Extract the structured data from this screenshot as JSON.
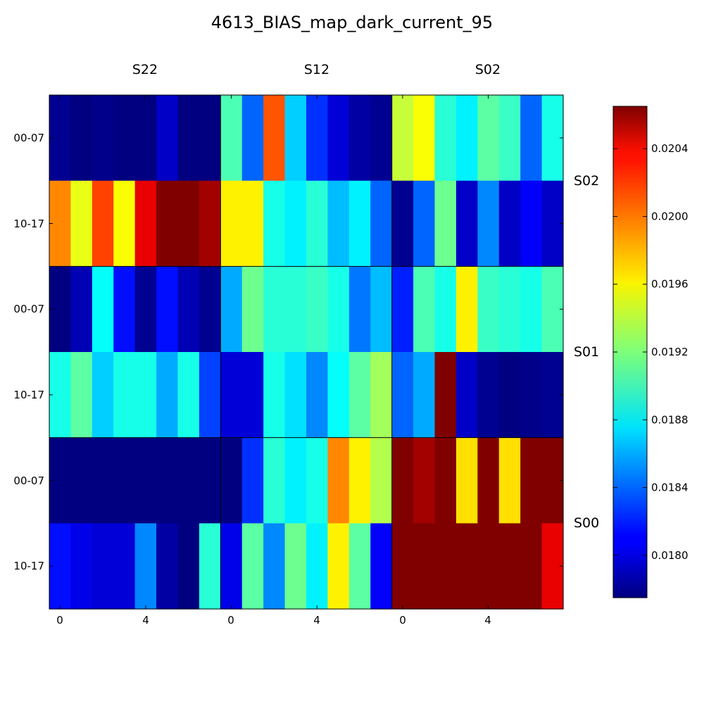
{
  "chart_data": {
    "type": "heatmap",
    "title": "4613_BIAS_map_dark_current_95",
    "column_sections": [
      "S22",
      "S12",
      "S02"
    ],
    "row_sections": [
      "S02",
      "S01",
      "S00"
    ],
    "row_labels": [
      "00-07",
      "10-17",
      "00-07",
      "10-17",
      "00-07",
      "10-17"
    ],
    "x_tick_labels": [
      "0",
      "4",
      "0",
      "4",
      "0",
      "4"
    ],
    "x_ticks": [
      0,
      4,
      8,
      12,
      16,
      20
    ],
    "colorbar": {
      "colormap": "jet",
      "range": [
        0.01775,
        0.02065
      ],
      "ticks": [
        0.018,
        0.0184,
        0.0188,
        0.0192,
        0.0196,
        0.02,
        0.0204
      ],
      "tick_labels": [
        "0.0180",
        "0.0184",
        "0.0188",
        "0.0192",
        "0.0196",
        "0.0200",
        "0.0204"
      ]
    },
    "values": [
      [
        0.0178,
        0.01775,
        0.01778,
        0.01775,
        0.01775,
        0.01795,
        0.01775,
        0.01775,
        0.01905,
        0.0184,
        0.02005,
        0.0187,
        0.01825,
        0.018,
        0.01785,
        0.0178,
        0.0194,
        0.01955,
        0.01895,
        0.0188,
        0.0191,
        0.019,
        0.0184,
        0.0189
      ],
      [
        0.0199,
        0.0195,
        0.0201,
        0.01955,
        0.02035,
        0.02065,
        0.02065,
        0.02055,
        0.0196,
        0.0196,
        0.0189,
        0.0188,
        0.01895,
        0.01865,
        0.0188,
        0.0184,
        0.0178,
        0.0184,
        0.01915,
        0.01795,
        0.0185,
        0.01795,
        0.0181,
        0.01795
      ],
      [
        0.01775,
        0.0179,
        0.01885,
        0.01815,
        0.0178,
        0.01815,
        0.0179,
        0.0178,
        0.0186,
        0.01915,
        0.01895,
        0.01895,
        0.019,
        0.0189,
        0.01845,
        0.01865,
        0.0182,
        0.01905,
        0.0189,
        0.0196,
        0.019,
        0.01895,
        0.0189,
        0.01905
      ],
      [
        0.0189,
        0.0191,
        0.0187,
        0.0189,
        0.0189,
        0.0186,
        0.0189,
        0.0183,
        0.018,
        0.018,
        0.0189,
        0.01875,
        0.0185,
        0.01885,
        0.0191,
        0.0193,
        0.0184,
        0.0186,
        0.02065,
        0.01795,
        0.0178,
        0.01775,
        0.01778,
        0.0178
      ],
      [
        0.01775,
        0.01775,
        0.01775,
        0.01775,
        0.01775,
        0.01775,
        0.01775,
        0.01775,
        0.01775,
        0.01825,
        0.01895,
        0.0188,
        0.0189,
        0.0199,
        0.0196,
        0.01935,
        0.02065,
        0.02055,
        0.02065,
        0.01965,
        0.02065,
        0.01965,
        0.02065,
        0.02065
      ],
      [
        0.01815,
        0.01805,
        0.018,
        0.018,
        0.0185,
        0.01785,
        0.01775,
        0.01895,
        0.01805,
        0.0191,
        0.0185,
        0.01915,
        0.0188,
        0.0196,
        0.0191,
        0.0181,
        0.02065,
        0.02065,
        0.02065,
        0.02065,
        0.02065,
        0.02065,
        0.02065,
        0.02035
      ]
    ]
  }
}
